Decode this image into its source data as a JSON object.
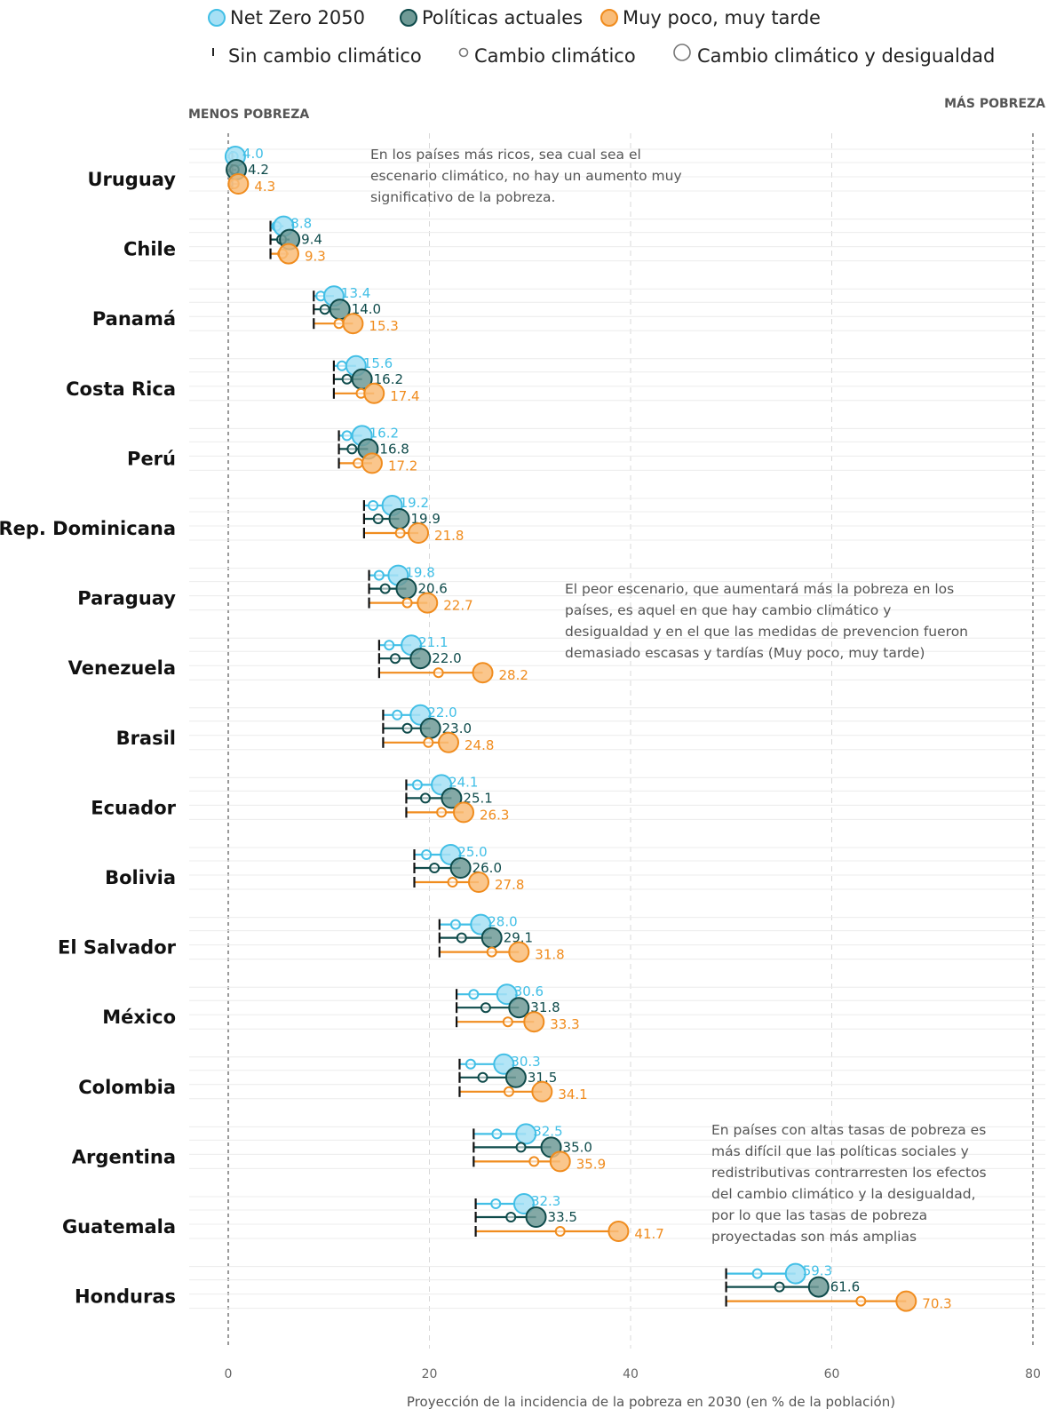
{
  "legend": {
    "scenarios": [
      {
        "key": "nz",
        "label": "Net Zero 2050",
        "color": "#42bfe6",
        "fill": "#a6e0f5"
      },
      {
        "key": "pa",
        "label": "Políticas actuales",
        "color": "#0f4b4b",
        "fill": "#6f9a96"
      },
      {
        "key": "mp",
        "label": "Muy poco, muy tarde",
        "color": "#f08c1e",
        "fill": "#f9bc78"
      }
    ],
    "markers": [
      {
        "key": "base",
        "label": "Sin cambio climático"
      },
      {
        "key": "cc",
        "label": "Cambio climático"
      },
      {
        "key": "ccd",
        "label": "Cambio climático y desigualdad"
      }
    ]
  },
  "side_labels": {
    "left": "MENOS POBREZA",
    "right": "MÁS POBREZA"
  },
  "annotations": [
    {
      "name": "annotation-rich-countries",
      "lines": [
        "En los países más ricos, sea cual sea el",
        "escenario climático, no hay un aumento muy",
        "significativo de la pobreza."
      ]
    },
    {
      "name": "annotation-worst-scenario",
      "lines": [
        "El peor escenario, que aumentará más la pobreza en los",
        "países, es aquel en que hay cambio climático y",
        "desigualdad y en el que las medidas de prevencion fueron",
        "demasiado escasas y tardías (Muy poco, muy tarde)"
      ]
    },
    {
      "name": "annotation-high-poverty",
      "lines": [
        "En países con  altas tasas de pobreza es",
        "más difícil que las políticas sociales y",
        "redistributivas contrarresten  los efectos",
        "del cambio climático y  la desigualdad,",
        "por lo que las tasas de pobreza",
        "proyectadas son más amplias"
      ]
    }
  ],
  "chart_data": {
    "type": "dot-range",
    "xlabel": "Proyección de la incidencia de la pobreza en 2030 (en % de la población)",
    "xlim": [
      0,
      80
    ],
    "xticks": [
      0,
      20,
      40,
      60,
      80
    ],
    "countries": [
      {
        "name": "Uruguay",
        "base": 0.4,
        "nz": {
          "cc": 0.5,
          "ccd": 0.7,
          "label": "4.0"
        },
        "pa": {
          "cc": 0.6,
          "ccd": 0.8,
          "label": "4.2"
        },
        "mp": {
          "cc": 0.6,
          "ccd": 1.0,
          "label": "4.3"
        }
      },
      {
        "name": "Chile",
        "base": 4.2,
        "nz": {
          "cc": 4.8,
          "ccd": 5.5,
          "label": "8.8"
        },
        "pa": {
          "cc": 5.3,
          "ccd": 6.1,
          "label": "9.4"
        },
        "mp": {
          "cc": 5.4,
          "ccd": 6.0,
          "label": "9.3"
        }
      },
      {
        "name": "Panamá",
        "base": 8.5,
        "nz": {
          "cc": 9.2,
          "ccd": 10.5,
          "label": "13.4"
        },
        "pa": {
          "cc": 9.6,
          "ccd": 11.1,
          "label": "14.0"
        },
        "mp": {
          "cc": 11.0,
          "ccd": 12.4,
          "label": "15.3"
        }
      },
      {
        "name": "Costa Rica",
        "base": 10.5,
        "nz": {
          "cc": 11.3,
          "ccd": 12.7,
          "label": "15.6"
        },
        "pa": {
          "cc": 11.8,
          "ccd": 13.3,
          "label": "16.2"
        },
        "mp": {
          "cc": 13.2,
          "ccd": 14.5,
          "label": "17.4"
        }
      },
      {
        "name": "Perú",
        "base": 11.0,
        "nz": {
          "cc": 11.8,
          "ccd": 13.3,
          "label": "16.2"
        },
        "pa": {
          "cc": 12.3,
          "ccd": 13.9,
          "label": "16.8"
        },
        "mp": {
          "cc": 12.9,
          "ccd": 14.3,
          "label": "17.2"
        }
      },
      {
        "name": "Rep. Dominicana",
        "base": 13.5,
        "nz": {
          "cc": 14.4,
          "ccd": 16.3,
          "label": "19.2"
        },
        "pa": {
          "cc": 14.9,
          "ccd": 17.0,
          "label": "19.9"
        },
        "mp": {
          "cc": 17.1,
          "ccd": 18.9,
          "label": "21.8"
        }
      },
      {
        "name": "Paraguay",
        "base": 14.0,
        "nz": {
          "cc": 15.0,
          "ccd": 16.9,
          "label": "19.8"
        },
        "pa": {
          "cc": 15.6,
          "ccd": 17.7,
          "label": "20.6"
        },
        "mp": {
          "cc": 17.8,
          "ccd": 19.8,
          "label": "22.7"
        }
      },
      {
        "name": "Venezuela",
        "base": 15.0,
        "nz": {
          "cc": 16.0,
          "ccd": 18.2,
          "label": "21.1"
        },
        "pa": {
          "cc": 16.6,
          "ccd": 19.1,
          "label": "22.0"
        },
        "mp": {
          "cc": 20.9,
          "ccd": 25.3,
          "label": "28.2"
        }
      },
      {
        "name": "Brasil",
        "base": 15.4,
        "nz": {
          "cc": 16.8,
          "ccd": 19.1,
          "label": "22.0"
        },
        "pa": {
          "cc": 17.8,
          "ccd": 20.1,
          "label": "23.0"
        },
        "mp": {
          "cc": 19.9,
          "ccd": 21.9,
          "label": "24.8"
        }
      },
      {
        "name": "Ecuador",
        "base": 17.7,
        "nz": {
          "cc": 18.8,
          "ccd": 21.2,
          "label": "24.1"
        },
        "pa": {
          "cc": 19.6,
          "ccd": 22.2,
          "label": "25.1"
        },
        "mp": {
          "cc": 21.2,
          "ccd": 23.4,
          "label": "26.3"
        }
      },
      {
        "name": "Bolivia",
        "base": 18.5,
        "nz": {
          "cc": 19.7,
          "ccd": 22.1,
          "label": "25.0"
        },
        "pa": {
          "cc": 20.5,
          "ccd": 23.1,
          "label": "26.0"
        },
        "mp": {
          "cc": 22.3,
          "ccd": 24.9,
          "label": "27.8"
        }
      },
      {
        "name": "El Salvador",
        "base": 21.0,
        "nz": {
          "cc": 22.6,
          "ccd": 25.1,
          "label": "28.0"
        },
        "pa": {
          "cc": 23.2,
          "ccd": 26.2,
          "label": "29.1"
        },
        "mp": {
          "cc": 26.2,
          "ccd": 28.9,
          "label": "31.8"
        }
      },
      {
        "name": "México",
        "base": 22.7,
        "nz": {
          "cc": 24.4,
          "ccd": 27.7,
          "label": "30.6"
        },
        "pa": {
          "cc": 25.6,
          "ccd": 28.9,
          "label": "31.8"
        },
        "mp": {
          "cc": 27.8,
          "ccd": 30.4,
          "label": "33.3"
        }
      },
      {
        "name": "Colombia",
        "base": 23.0,
        "nz": {
          "cc": 24.1,
          "ccd": 27.4,
          "label": "30.3"
        },
        "pa": {
          "cc": 25.3,
          "ccd": 28.6,
          "label": "31.5"
        },
        "mp": {
          "cc": 27.9,
          "ccd": 31.2,
          "label": "34.1"
        }
      },
      {
        "name": "Argentina",
        "base": 24.4,
        "nz": {
          "cc": 26.7,
          "ccd": 29.6,
          "label": "32.5"
        },
        "pa": {
          "cc": 29.1,
          "ccd": 32.1,
          "label": "35.0"
        },
        "mp": {
          "cc": 30.4,
          "ccd": 33.0,
          "label": "35.9"
        }
      },
      {
        "name": "Guatemala",
        "base": 24.6,
        "nz": {
          "cc": 26.6,
          "ccd": 29.4,
          "label": "32.3"
        },
        "pa": {
          "cc": 28.1,
          "ccd": 30.6,
          "label": "33.5"
        },
        "mp": {
          "cc": 33.0,
          "ccd": 38.8,
          "label": "41.7"
        }
      },
      {
        "name": "Honduras",
        "base": 49.5,
        "nz": {
          "cc": 52.6,
          "ccd": 56.4,
          "label": "59.3"
        },
        "pa": {
          "cc": 54.8,
          "ccd": 58.7,
          "label": "61.6"
        },
        "mp": {
          "cc": 62.9,
          "ccd": 67.4,
          "label": "70.3"
        }
      }
    ]
  }
}
